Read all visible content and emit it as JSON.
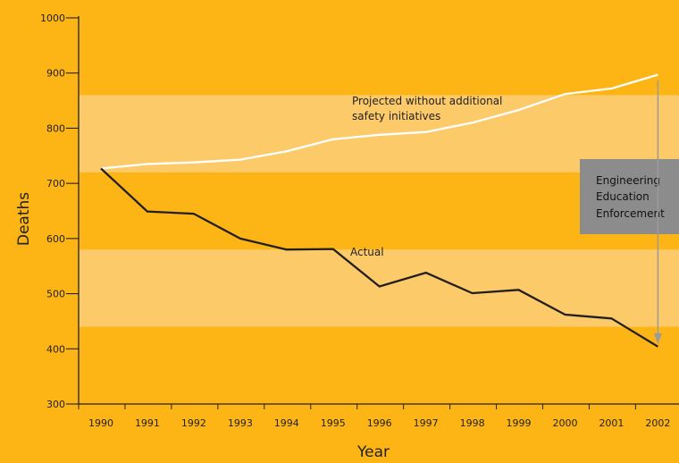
{
  "chart_data": {
    "type": "line",
    "title": "",
    "xlabel": "Year",
    "ylabel": "Deaths",
    "x": [
      "1990",
      "1991",
      "1992",
      "1993",
      "1994",
      "1995",
      "1996",
      "1997",
      "1998",
      "1999",
      "2000",
      "2001",
      "2002"
    ],
    "ylim": [
      300,
      1000
    ],
    "yticks": [
      300,
      400,
      500,
      600,
      700,
      800,
      900,
      1000
    ],
    "grid": false,
    "series": [
      {
        "name": "Projected without additional safety initiatives",
        "values": [
          727,
          735,
          738,
          743,
          758,
          780,
          788,
          793,
          810,
          833,
          862,
          872,
          897
        ]
      },
      {
        "name": "Actual",
        "values": [
          727,
          649,
          645,
          600,
          580,
          581,
          513,
          538,
          501,
          507,
          462,
          455,
          404
        ]
      }
    ],
    "annotations": {
      "projected_line1": "Projected without additional",
      "projected_line2": "safety initiatives",
      "actual": "Actual",
      "box_lines": [
        "Engineering",
        "Education",
        "Enforcement"
      ]
    },
    "colors": {
      "background": "#fdb515",
      "band": "#fdca69",
      "projected": "#ffffff",
      "actual": "#231f20",
      "box": "#8c8c8c",
      "arrow": "#9a9a9a"
    }
  }
}
